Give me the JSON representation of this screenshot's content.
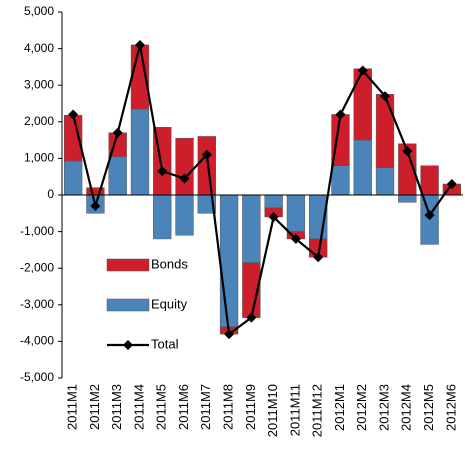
{
  "chart_data": {
    "type": "bar",
    "stacked": true,
    "categories": [
      "2011M1",
      "2011M2",
      "2011M3",
      "2011M4",
      "2011M5",
      "2011M6",
      "2011M7",
      "2011M8",
      "2011M9",
      "2011M10",
      "2011M11",
      "2011M12",
      "2012M1",
      "2012M2",
      "2012M3",
      "2012M4",
      "2012M5",
      "2012M6"
    ],
    "series": [
      {
        "name": "Equity",
        "type": "bar",
        "color": "#4a84b8",
        "values": [
          930,
          -500,
          1050,
          2350,
          -1200,
          -1100,
          -500,
          -3600,
          -1850,
          -350,
          -1000,
          -1200,
          800,
          1500,
          750,
          -200,
          -1350,
          0
        ]
      },
      {
        "name": "Bonds",
        "type": "bar",
        "color": "#cc1f2b",
        "values": [
          1250,
          200,
          650,
          1750,
          1850,
          1550,
          1600,
          -200,
          -1500,
          -250,
          -200,
          -500,
          1400,
          1950,
          2000,
          1400,
          800,
          300
        ]
      },
      {
        "name": "Total",
        "type": "line",
        "color": "#000000",
        "values": [
          2200,
          -300,
          1700,
          4100,
          650,
          450,
          1100,
          -3800,
          -3350,
          -600,
          -1200,
          -1700,
          2200,
          3400,
          2700,
          1200,
          -550,
          300
        ]
      }
    ],
    "ylim": [
      -5000,
      5000
    ],
    "yticks": [
      {
        "value": -5000,
        "label": "-5,000"
      },
      {
        "value": -4000,
        "label": "-4,000"
      },
      {
        "value": -3000,
        "label": "-3,000"
      },
      {
        "value": -2000,
        "label": "-2,000"
      },
      {
        "value": -1000,
        "label": "-1,000"
      },
      0,
      {
        "value": 1000,
        "label": "1,000"
      },
      {
        "value": 2000,
        "label": "2,000"
      },
      {
        "value": 3000,
        "label": "3,000"
      },
      {
        "value": 4000,
        "label": "4,000"
      },
      {
        "value": 5000,
        "label": "5,000"
      }
    ],
    "grid": false,
    "legend": "lower-left"
  }
}
